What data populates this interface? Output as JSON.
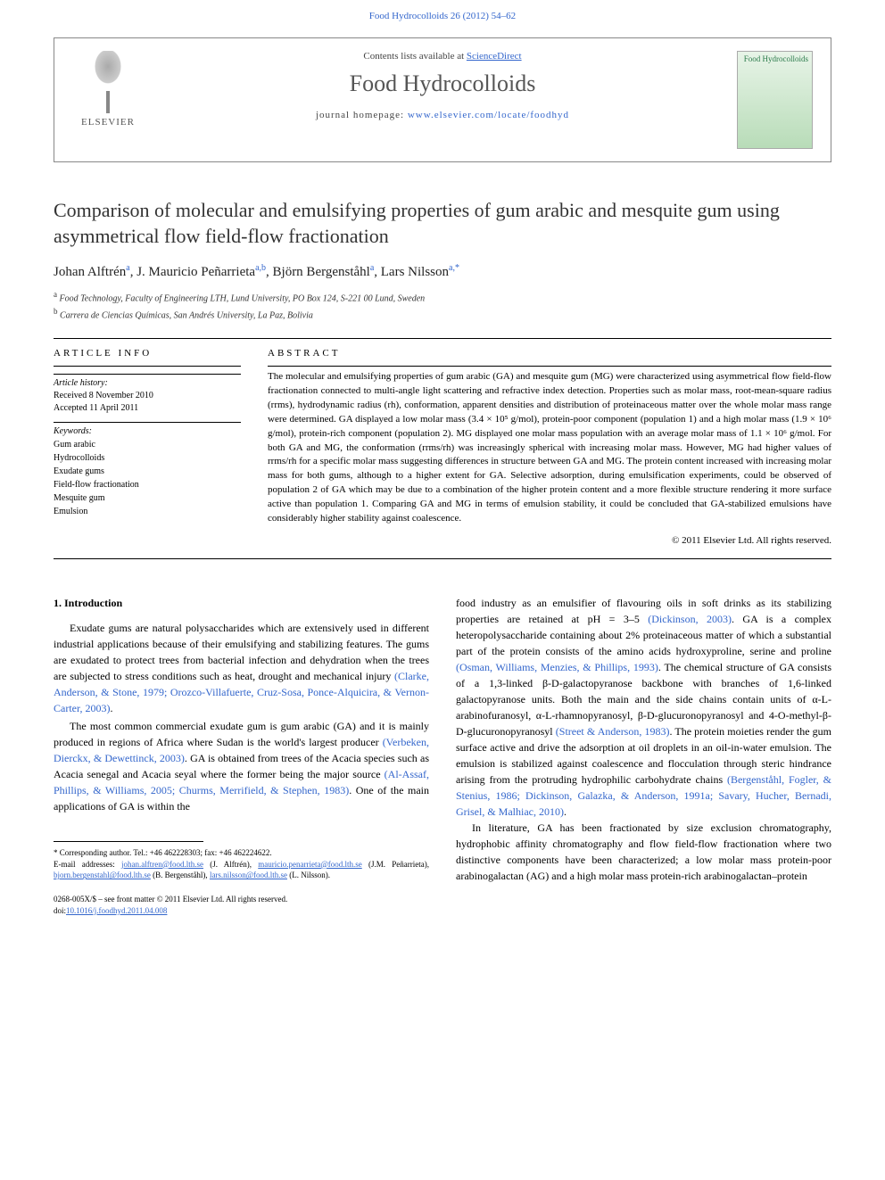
{
  "header": {
    "citation": "Food Hydrocolloids 26 (2012) 54–62"
  },
  "journal_box": {
    "publisher_name": "ELSEVIER",
    "contents_text": "Contents lists available at ",
    "contents_link": "ScienceDirect",
    "journal_name": "Food Hydrocolloids",
    "homepage_label": "journal homepage: ",
    "homepage_url": "www.elsevier.com/locate/foodhyd",
    "cover_title": "Food Hydrocolloids"
  },
  "article": {
    "title": "Comparison of molecular and emulsifying properties of gum arabic and mesquite gum using asymmetrical flow field-flow fractionation",
    "authors_html": "Johan Alftrén<sup>a</sup>, J. Mauricio Peñarrieta<sup>a,b</sup>, Björn Bergenståhl<sup>a</sup>, Lars Nilsson<sup>a,*</sup>",
    "affiliations": [
      {
        "sup": "a",
        "text": "Food Technology, Faculty of Engineering LTH, Lund University, PO Box 124, S-221 00 Lund, Sweden"
      },
      {
        "sup": "b",
        "text": "Carrera de Ciencias Químicas, San Andrés University, La Paz, Bolivia"
      }
    ]
  },
  "info": {
    "heading": "ARTICLE INFO",
    "history_label": "Article history:",
    "history_received": "Received 8 November 2010",
    "history_accepted": "Accepted 11 April 2011",
    "keywords_label": "Keywords:",
    "keywords": [
      "Gum arabic",
      "Hydrocolloids",
      "Exudate gums",
      "Field-flow fractionation",
      "Mesquite gum",
      "Emulsion"
    ]
  },
  "abstract": {
    "heading": "ABSTRACT",
    "text": "The molecular and emulsifying properties of gum arabic (GA) and mesquite gum (MG) were characterized using asymmetrical flow field-flow fractionation connected to multi-angle light scattering and refractive index detection. Properties such as molar mass, root-mean-square radius (rrms), hydrodynamic radius (rh), conformation, apparent densities and distribution of proteinaceous matter over the whole molar mass range were determined. GA displayed a low molar mass (3.4 × 10⁵ g/mol), protein-poor component (population 1) and a high molar mass (1.9 × 10⁶ g/mol), protein-rich component (population 2). MG displayed one molar mass population with an average molar mass of 1.1 × 10⁶ g/mol. For both GA and MG, the conformation (rrms/rh) was increasingly spherical with increasing molar mass. However, MG had higher values of rrms/rh for a specific molar mass suggesting differences in structure between GA and MG. The protein content increased with increasing molar mass for both gums, although to a higher extent for GA. Selective adsorption, during emulsification experiments, could be observed of population 2 of GA which may be due to a combination of the higher protein content and a more flexible structure rendering it more surface active than population 1. Comparing GA and MG in terms of emulsion stability, it could be concluded that GA-stabilized emulsions have considerably higher stability against coalescence.",
    "copyright": "© 2011 Elsevier Ltd. All rights reserved."
  },
  "body": {
    "section_heading": "1. Introduction",
    "col1_p1": "Exudate gums are natural polysaccharides which are extensively used in different industrial applications because of their emulsifying and stabilizing features. The gums are exudated to protect trees from bacterial infection and dehydration when the trees are subjected to stress conditions such as heat, drought and mechanical injury ",
    "col1_p1_cite": "(Clarke, Anderson, & Stone, 1979; Orozco-Villafuerte, Cruz-Sosa, Ponce-Alquicira, & Vernon-Carter, 2003)",
    "col1_p2": "The most common commercial exudate gum is gum arabic (GA) and it is mainly produced in regions of Africa where Sudan is the world's largest producer ",
    "col1_p2_cite1": "(Verbeken, Dierckx, & Dewettinck, 2003)",
    "col1_p2b": ". GA is obtained from trees of the Acacia species such as Acacia senegal and Acacia seyal where the former being the major source ",
    "col1_p2_cite2": "(Al-Assaf, Phillips, & Williams, 2005; Churms, Merrifield, & Stephen, 1983)",
    "col1_p2c": ". One of the main applications of GA is within the",
    "col2_p1a": "food industry as an emulsifier of flavouring oils in soft drinks as its stabilizing properties are retained at pH = 3–5 ",
    "col2_p1_cite1": "(Dickinson, 2003)",
    "col2_p1b": ". GA is a complex heteropolysaccharide containing about 2% proteinaceous matter of which a substantial part of the protein consists of the amino acids hydroxyproline, serine and proline ",
    "col2_p1_cite2": "(Osman, Williams, Menzies, & Phillips, 1993)",
    "col2_p1c": ". The chemical structure of GA consists of a 1,3-linked β-D-galactopyranose backbone with branches of 1,6-linked galactopyranose units. Both the main and the side chains contain units of α-L-arabinofuranosyl, α-L-rhamnopyranosyl, β-D-glucuronopyranosyl and 4-O-methyl-β-D-glucuronopyranosyl ",
    "col2_p1_cite3": "(Street & Anderson, 1983)",
    "col2_p1d": ". The protein moieties render the gum surface active and drive the adsorption at oil droplets in an oil-in-water emulsion. The emulsion is stabilized against coalescence and flocculation through steric hindrance arising from the protruding hydrophilic carbohydrate chains ",
    "col2_p1_cite4": "(Bergenståhl, Fogler, & Stenius, 1986; Dickinson, Galazka, & Anderson, 1991a; Savary, Hucher, Bernadi, Grisel, & Malhiac, 2010)",
    "col2_p2a": "In literature, GA has been fractionated by size exclusion chromatography, hydrophobic affinity chromatography and flow field-flow fractionation where two distinctive components have been characterized; a low molar mass protein-poor arabinogalactan (AG) and a high molar mass protein-rich arabinogalactan–protein"
  },
  "footnote": {
    "corr_label": "* Corresponding author. Tel.: +46 462228303; fax: +46 462224622.",
    "email_label": "E-mail addresses: ",
    "emails": [
      {
        "addr": "johan.alftren@food.lth.se",
        "who": "(J. Alftrén)"
      },
      {
        "addr": "mauricio.penarrieta@food.lth.se",
        "who": "(J.M. Peñarrieta)"
      },
      {
        "addr": "bjorn.bergenstahl@food.lth.se",
        "who": "(B. Bergenståhl)"
      },
      {
        "addr": "lars.nilsson@food.lth.se",
        "who": "(L. Nilsson)"
      }
    ]
  },
  "doi": {
    "line1": "0268-005X/$ – see front matter © 2011 Elsevier Ltd. All rights reserved.",
    "line2_label": "doi:",
    "line2_link": "10.1016/j.foodhyd.2011.04.008"
  }
}
